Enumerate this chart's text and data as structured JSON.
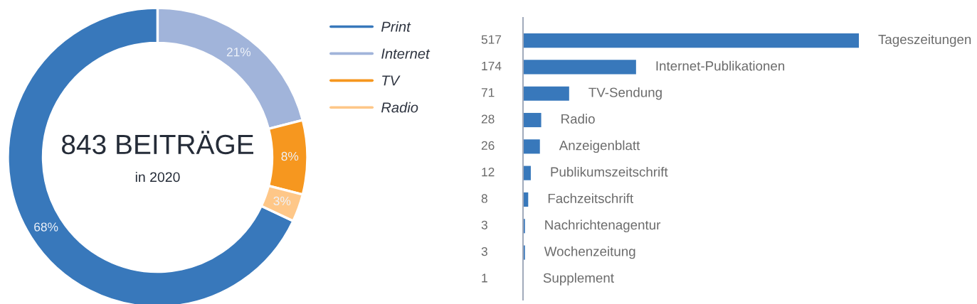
{
  "chart_data": [
    {
      "type": "donut",
      "title": "843 BEITRÄGE",
      "subtitle": "in 2020",
      "categories": [
        "Print",
        "Internet",
        "TV",
        "Radio"
      ],
      "values": [
        68,
        21,
        8,
        3
      ],
      "colors": [
        "#3878bb",
        "#a1b4da",
        "#f6971f",
        "#fec788"
      ],
      "value_labels": [
        "68%",
        "21%",
        "8%",
        "3%"
      ],
      "legend": "top right"
    },
    {
      "type": "bar",
      "orientation": "horizontal",
      "categories": [
        "Tageszeitungen",
        "Internet-Publikationen",
        "TV-Sendung",
        "Radio",
        "Anzeigenblatt",
        "Publikumszeitschrift",
        "Fachzeitschrift",
        "Nachrichtenagentur",
        "Wochenzeitung",
        "Supplement"
      ],
      "values": [
        517,
        174,
        71,
        28,
        26,
        12,
        8,
        3,
        3,
        1
      ],
      "color": "#3878bb",
      "xlim": [
        0,
        517
      ],
      "data_labels": true,
      "tick_labels": false
    }
  ]
}
